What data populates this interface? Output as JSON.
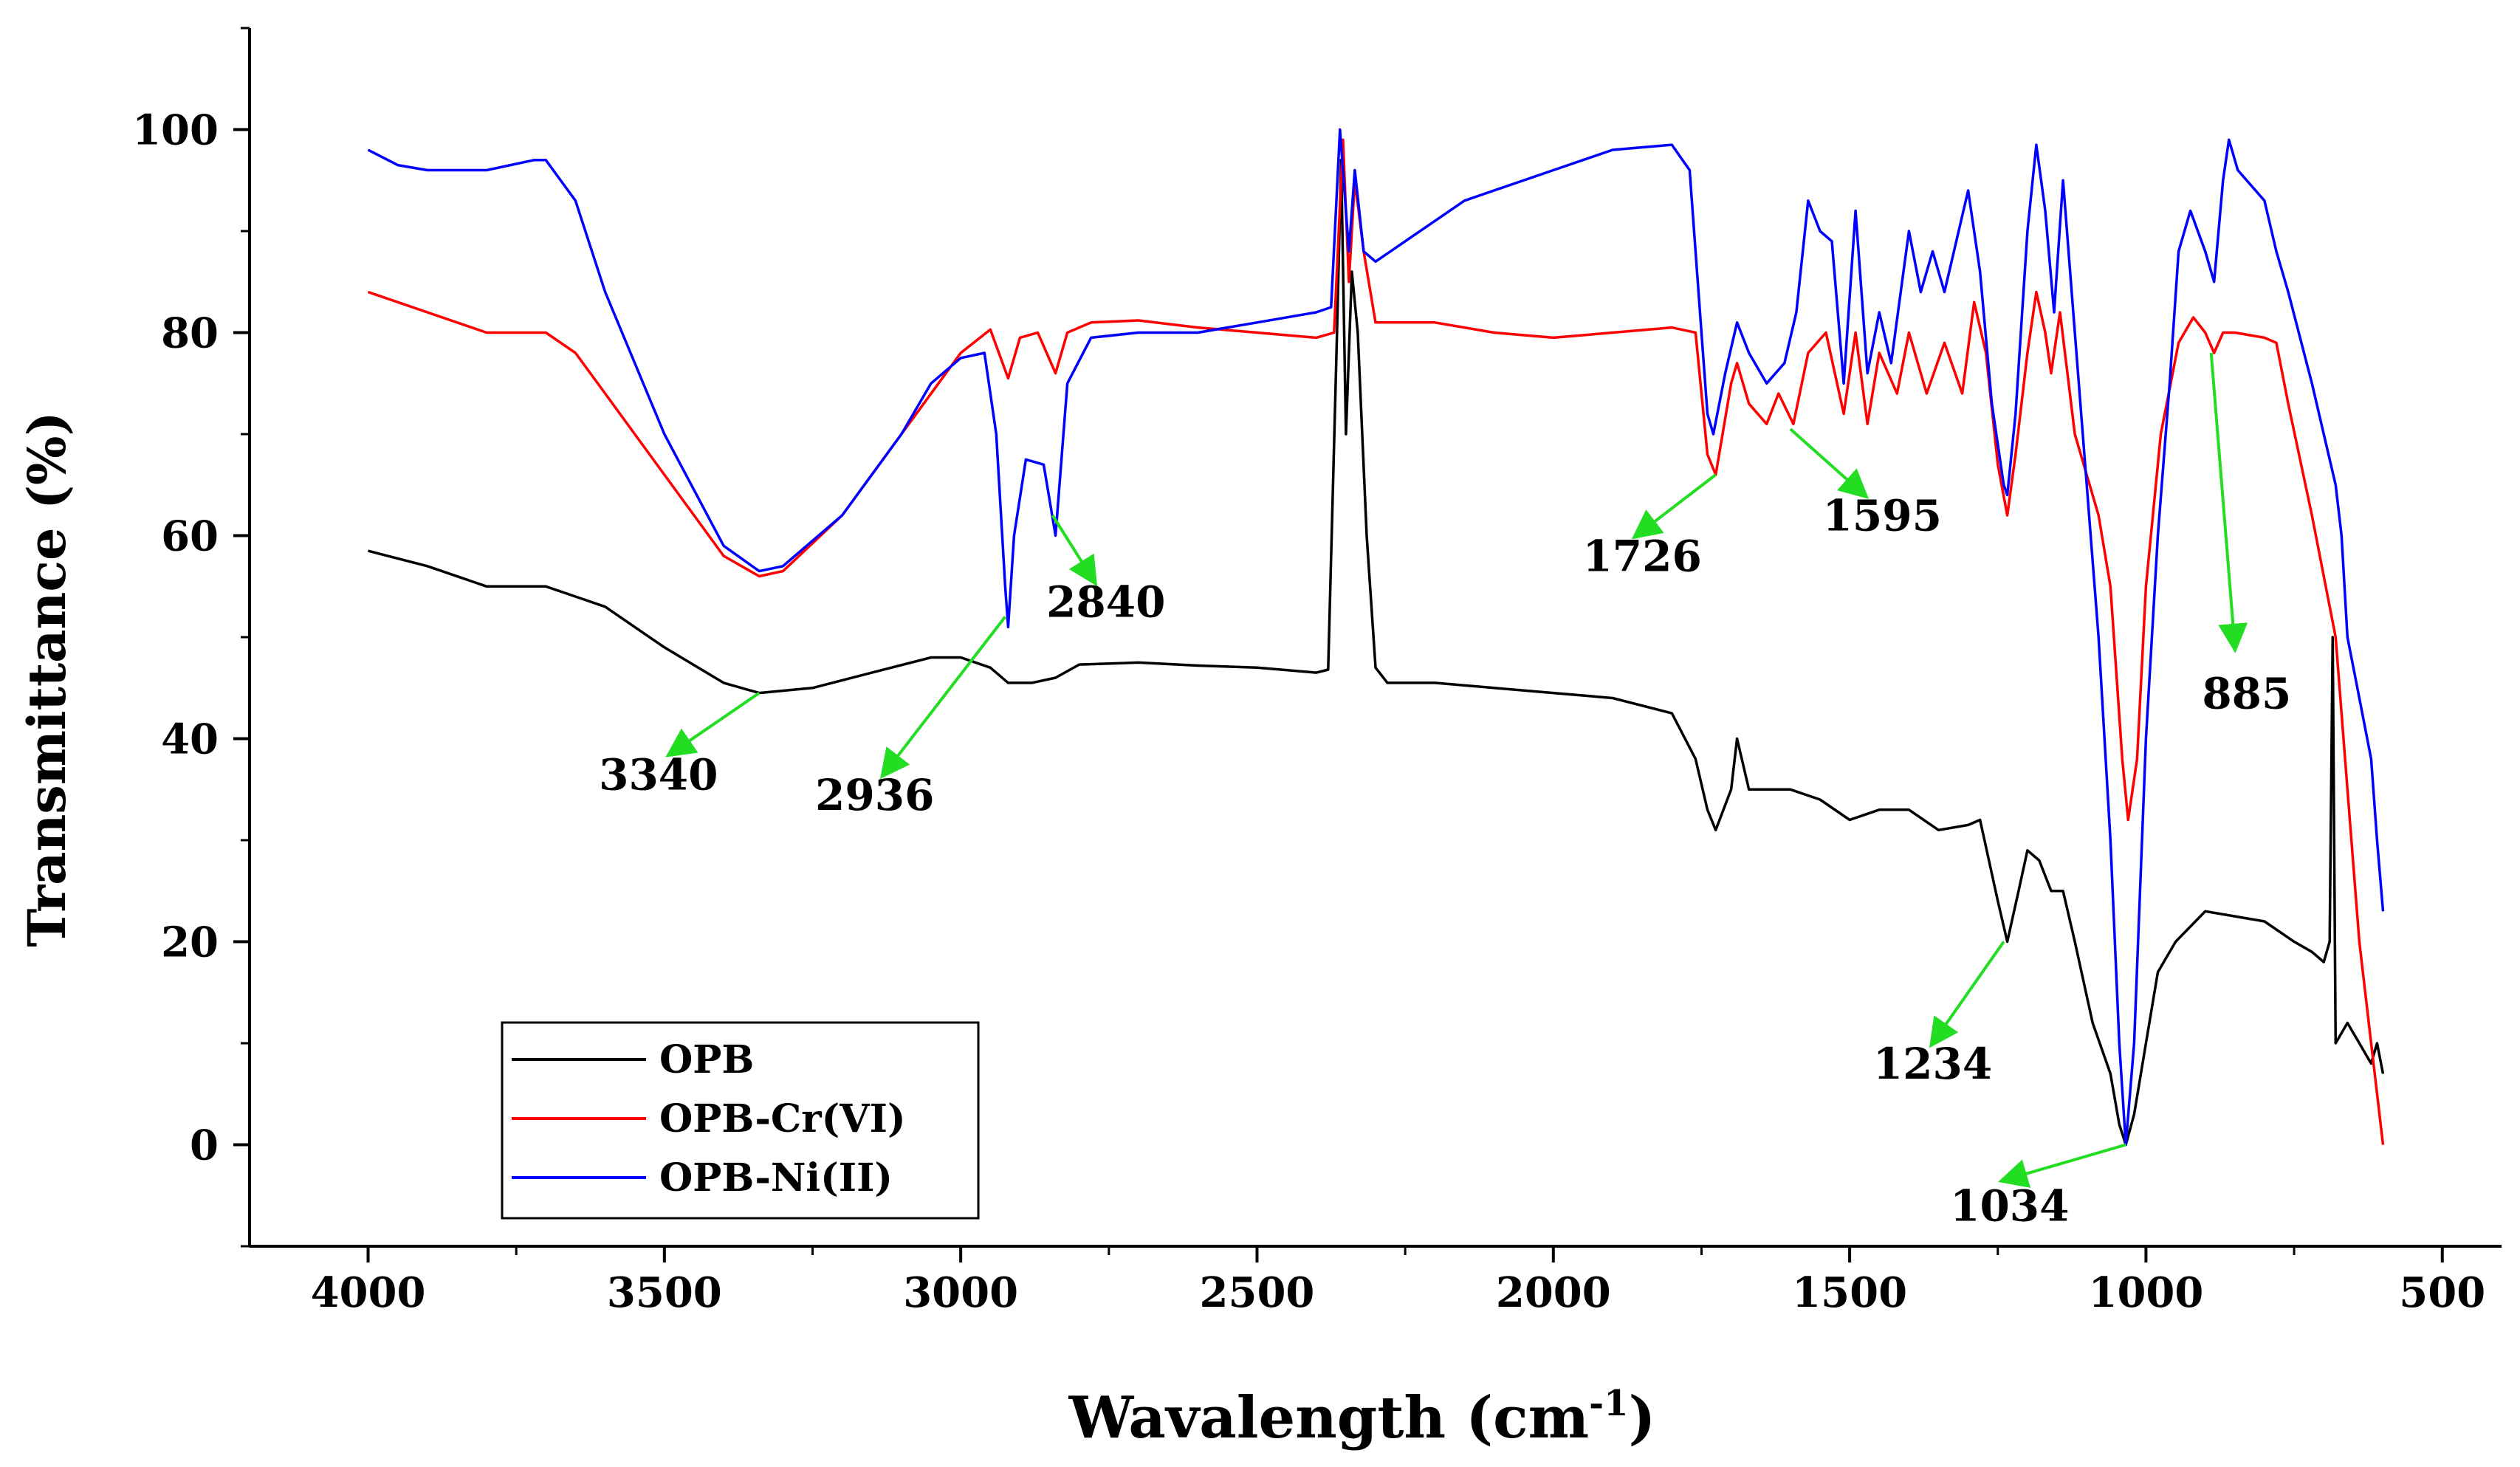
{
  "chart_data": {
    "type": "line",
    "title": "",
    "xlabel": "Wavalength (cm",
    "xlabel_sup": "-1",
    "xlabel_close": ")",
    "ylabel": "Transmittance (%)",
    "xlim": [
      4200,
      400
    ],
    "ylim": [
      -10,
      110
    ],
    "x_ticks": [
      4000,
      3500,
      3000,
      2500,
      2000,
      1500,
      1000,
      500
    ],
    "x_tick_labels": [
      "4000",
      "3500",
      "3000",
      "2500",
      "2000",
      "1500",
      "1000",
      "500"
    ],
    "y_ticks": [
      0,
      20,
      40,
      60,
      80,
      100
    ],
    "y_tick_labels": [
      "0",
      "20",
      "40",
      "60",
      "80",
      "100"
    ],
    "grid": false,
    "legend_position": "bottom-left",
    "series": [
      {
        "name": "OPB",
        "color": "#000000",
        "points": [
          [
            4000,
            58.5
          ],
          [
            3900,
            57
          ],
          [
            3800,
            55
          ],
          [
            3700,
            55
          ],
          [
            3600,
            53
          ],
          [
            3500,
            49
          ],
          [
            3400,
            45.5
          ],
          [
            3340,
            44.5
          ],
          [
            3250,
            45
          ],
          [
            3150,
            46.5
          ],
          [
            3050,
            48
          ],
          [
            3000,
            48
          ],
          [
            2950,
            47
          ],
          [
            2920,
            45.5
          ],
          [
            2880,
            45.5
          ],
          [
            2840,
            46
          ],
          [
            2800,
            47.3
          ],
          [
            2700,
            47.5
          ],
          [
            2600,
            47.2
          ],
          [
            2500,
            47
          ],
          [
            2400,
            46.5
          ],
          [
            2380,
            46.8
          ],
          [
            2365,
            80
          ],
          [
            2358,
            97
          ],
          [
            2350,
            70
          ],
          [
            2340,
            86
          ],
          [
            2330,
            80
          ],
          [
            2315,
            60
          ],
          [
            2300,
            47
          ],
          [
            2280,
            45.5
          ],
          [
            2200,
            45.5
          ],
          [
            2100,
            45
          ],
          [
            2000,
            44.5
          ],
          [
            1900,
            44
          ],
          [
            1800,
            42.5
          ],
          [
            1760,
            38
          ],
          [
            1740,
            33
          ],
          [
            1726,
            31
          ],
          [
            1700,
            35
          ],
          [
            1690,
            40
          ],
          [
            1670,
            35
          ],
          [
            1600,
            35
          ],
          [
            1550,
            34
          ],
          [
            1500,
            32
          ],
          [
            1450,
            33
          ],
          [
            1400,
            33
          ],
          [
            1350,
            31
          ],
          [
            1300,
            31.5
          ],
          [
            1280,
            32
          ],
          [
            1250,
            24
          ],
          [
            1234,
            20
          ],
          [
            1215,
            25
          ],
          [
            1200,
            29
          ],
          [
            1180,
            28
          ],
          [
            1160,
            25
          ],
          [
            1140,
            25
          ],
          [
            1120,
            20
          ],
          [
            1090,
            12
          ],
          [
            1060,
            7
          ],
          [
            1045,
            2
          ],
          [
            1034,
            0
          ],
          [
            1020,
            3
          ],
          [
            1000,
            10
          ],
          [
            980,
            17
          ],
          [
            950,
            20
          ],
          [
            900,
            23
          ],
          [
            850,
            22.5
          ],
          [
            800,
            22
          ],
          [
            750,
            20
          ],
          [
            720,
            19
          ],
          [
            700,
            18
          ],
          [
            690,
            20
          ],
          [
            685,
            50
          ],
          [
            680,
            10
          ],
          [
            660,
            12
          ],
          [
            640,
            10
          ],
          [
            620,
            8
          ],
          [
            610,
            10
          ],
          [
            600,
            7
          ]
        ]
      },
      {
        "name": "OPB-Cr(VI)",
        "color": "#ff0000",
        "points": [
          [
            4000,
            84
          ],
          [
            3900,
            82
          ],
          [
            3800,
            80
          ],
          [
            3700,
            80
          ],
          [
            3650,
            78
          ],
          [
            3600,
            74
          ],
          [
            3500,
            66
          ],
          [
            3400,
            58
          ],
          [
            3340,
            56
          ],
          [
            3300,
            56.5
          ],
          [
            3200,
            62
          ],
          [
            3100,
            70
          ],
          [
            3000,
            78
          ],
          [
            2950,
            80.3
          ],
          [
            2920,
            75.5
          ],
          [
            2900,
            79.5
          ],
          [
            2870,
            80
          ],
          [
            2840,
            76
          ],
          [
            2820,
            80
          ],
          [
            2780,
            81
          ],
          [
            2700,
            81.2
          ],
          [
            2600,
            80.5
          ],
          [
            2500,
            80
          ],
          [
            2400,
            79.5
          ],
          [
            2370,
            80
          ],
          [
            2355,
            99
          ],
          [
            2345,
            85
          ],
          [
            2335,
            95
          ],
          [
            2320,
            88
          ],
          [
            2300,
            81
          ],
          [
            2200,
            81
          ],
          [
            2100,
            80
          ],
          [
            2000,
            79.5
          ],
          [
            1900,
            80
          ],
          [
            1800,
            80.5
          ],
          [
            1760,
            80
          ],
          [
            1740,
            68
          ],
          [
            1726,
            66
          ],
          [
            1700,
            75
          ],
          [
            1690,
            77
          ],
          [
            1670,
            73
          ],
          [
            1640,
            71
          ],
          [
            1620,
            74
          ],
          [
            1595,
            71
          ],
          [
            1570,
            78
          ],
          [
            1540,
            80
          ],
          [
            1510,
            72
          ],
          [
            1490,
            80
          ],
          [
            1470,
            71
          ],
          [
            1450,
            78
          ],
          [
            1420,
            74
          ],
          [
            1400,
            80
          ],
          [
            1370,
            74
          ],
          [
            1340,
            79
          ],
          [
            1310,
            74
          ],
          [
            1290,
            83
          ],
          [
            1270,
            78
          ],
          [
            1250,
            67
          ],
          [
            1234,
            62
          ],
          [
            1220,
            68
          ],
          [
            1200,
            78
          ],
          [
            1185,
            84
          ],
          [
            1170,
            80
          ],
          [
            1160,
            76
          ],
          [
            1145,
            82
          ],
          [
            1120,
            70
          ],
          [
            1080,
            62
          ],
          [
            1060,
            55
          ],
          [
            1040,
            38
          ],
          [
            1030,
            32
          ],
          [
            1015,
            38
          ],
          [
            1000,
            55
          ],
          [
            975,
            70
          ],
          [
            945,
            79
          ],
          [
            920,
            81.5
          ],
          [
            900,
            80
          ],
          [
            885,
            78
          ],
          [
            870,
            80
          ],
          [
            850,
            80
          ],
          [
            800,
            79.5
          ],
          [
            780,
            79
          ],
          [
            760,
            73
          ],
          [
            720,
            62
          ],
          [
            680,
            50
          ],
          [
            660,
            35
          ],
          [
            640,
            20
          ],
          [
            620,
            10
          ],
          [
            600,
            0
          ]
        ]
      },
      {
        "name": "OPB-Ni(II)",
        "color": "#0000ff",
        "points": [
          [
            4000,
            98
          ],
          [
            3950,
            96.5
          ],
          [
            3900,
            96
          ],
          [
            3800,
            96
          ],
          [
            3720,
            97
          ],
          [
            3700,
            97
          ],
          [
            3650,
            93
          ],
          [
            3600,
            84
          ],
          [
            3500,
            70
          ],
          [
            3400,
            59
          ],
          [
            3340,
            56.5
          ],
          [
            3300,
            57
          ],
          [
            3200,
            62
          ],
          [
            3100,
            70
          ],
          [
            3050,
            75
          ],
          [
            3000,
            77.5
          ],
          [
            2960,
            78
          ],
          [
            2940,
            70
          ],
          [
            2925,
            55
          ],
          [
            2920,
            51
          ],
          [
            2910,
            60
          ],
          [
            2890,
            67.5
          ],
          [
            2860,
            67
          ],
          [
            2840,
            60
          ],
          [
            2820,
            75
          ],
          [
            2780,
            79.5
          ],
          [
            2700,
            80
          ],
          [
            2600,
            80
          ],
          [
            2500,
            81
          ],
          [
            2400,
            82
          ],
          [
            2375,
            82.5
          ],
          [
            2360,
            100
          ],
          [
            2345,
            88
          ],
          [
            2335,
            96
          ],
          [
            2320,
            88
          ],
          [
            2300,
            87
          ],
          [
            2200,
            91
          ],
          [
            2150,
            93
          ],
          [
            2100,
            94
          ],
          [
            2000,
            96
          ],
          [
            1900,
            98
          ],
          [
            1800,
            98.5
          ],
          [
            1770,
            96
          ],
          [
            1750,
            80
          ],
          [
            1740,
            72
          ],
          [
            1730,
            70
          ],
          [
            1710,
            76
          ],
          [
            1690,
            81
          ],
          [
            1670,
            78
          ],
          [
            1640,
            75
          ],
          [
            1610,
            77
          ],
          [
            1590,
            82
          ],
          [
            1570,
            93
          ],
          [
            1550,
            90
          ],
          [
            1530,
            89
          ],
          [
            1510,
            75
          ],
          [
            1490,
            92
          ],
          [
            1470,
            76
          ],
          [
            1450,
            82
          ],
          [
            1430,
            77
          ],
          [
            1400,
            90
          ],
          [
            1380,
            84
          ],
          [
            1360,
            88
          ],
          [
            1340,
            84
          ],
          [
            1300,
            94
          ],
          [
            1280,
            86
          ],
          [
            1260,
            73
          ],
          [
            1240,
            65
          ],
          [
            1234,
            64
          ],
          [
            1220,
            72
          ],
          [
            1200,
            90
          ],
          [
            1185,
            98.5
          ],
          [
            1170,
            92
          ],
          [
            1155,
            82
          ],
          [
            1140,
            95
          ],
          [
            1120,
            80
          ],
          [
            1100,
            65
          ],
          [
            1080,
            50
          ],
          [
            1060,
            30
          ],
          [
            1045,
            10
          ],
          [
            1034,
            0
          ],
          [
            1020,
            10
          ],
          [
            1000,
            40
          ],
          [
            980,
            60
          ],
          [
            960,
            75
          ],
          [
            945,
            88
          ],
          [
            925,
            92
          ],
          [
            900,
            88
          ],
          [
            885,
            85
          ],
          [
            870,
            95
          ],
          [
            860,
            99
          ],
          [
            845,
            96
          ],
          [
            800,
            93
          ],
          [
            780,
            88
          ],
          [
            760,
            84
          ],
          [
            720,
            75
          ],
          [
            680,
            65
          ],
          [
            670,
            60
          ],
          [
            660,
            50
          ],
          [
            640,
            44
          ],
          [
            620,
            38
          ],
          [
            610,
            30
          ],
          [
            600,
            23
          ]
        ]
      }
    ],
    "annotations": [
      {
        "label": "3340",
        "peak_x": 3340,
        "peak_y": 44.5,
        "text_x": 3510,
        "text_y": 35,
        "arrow_end_x": 3490,
        "arrow_end_y": 38.5
      },
      {
        "label": "2936",
        "peak_x": 2925,
        "peak_y": 52,
        "text_x": 3145,
        "text_y": 33,
        "arrow_end_x": 3130,
        "arrow_end_y": 36.5
      },
      {
        "label": "2840",
        "peak_x": 2845,
        "peak_y": 62,
        "text_x": 2755,
        "text_y": 52,
        "arrow_end_x": 2775,
        "arrow_end_y": 55.5
      },
      {
        "label": "1726",
        "peak_x": 1726,
        "peak_y": 66,
        "text_x": 1850,
        "text_y": 56.5,
        "arrow_end_x": 1860,
        "arrow_end_y": 60
      },
      {
        "label": "1595",
        "peak_x": 1600,
        "peak_y": 70.5,
        "text_x": 1445,
        "text_y": 60.5,
        "arrow_end_x": 1475,
        "arrow_end_y": 64
      },
      {
        "label": "885",
        "peak_x": 890,
        "peak_y": 78,
        "text_x": 830,
        "text_y": 43,
        "arrow_end_x": 850,
        "arrow_end_y": 49
      },
      {
        "label": "1234",
        "peak_x": 1240,
        "peak_y": 20,
        "text_x": 1360,
        "text_y": 6.5,
        "arrow_end_x": 1360,
        "arrow_end_y": 10
      },
      {
        "label": "1034",
        "peak_x": 1034,
        "peak_y": 0,
        "text_x": 1230,
        "text_y": -7.5,
        "arrow_end_x": 1240,
        "arrow_end_y": -3.5
      }
    ],
    "annotation_arrow_color": "#22dd22",
    "legend": [
      {
        "label": "OPB",
        "color": "#000000"
      },
      {
        "label": "OPB-Cr(VI)",
        "color": "#ff0000"
      },
      {
        "label": "OPB-Ni(II)",
        "color": "#0000ff"
      }
    ]
  }
}
